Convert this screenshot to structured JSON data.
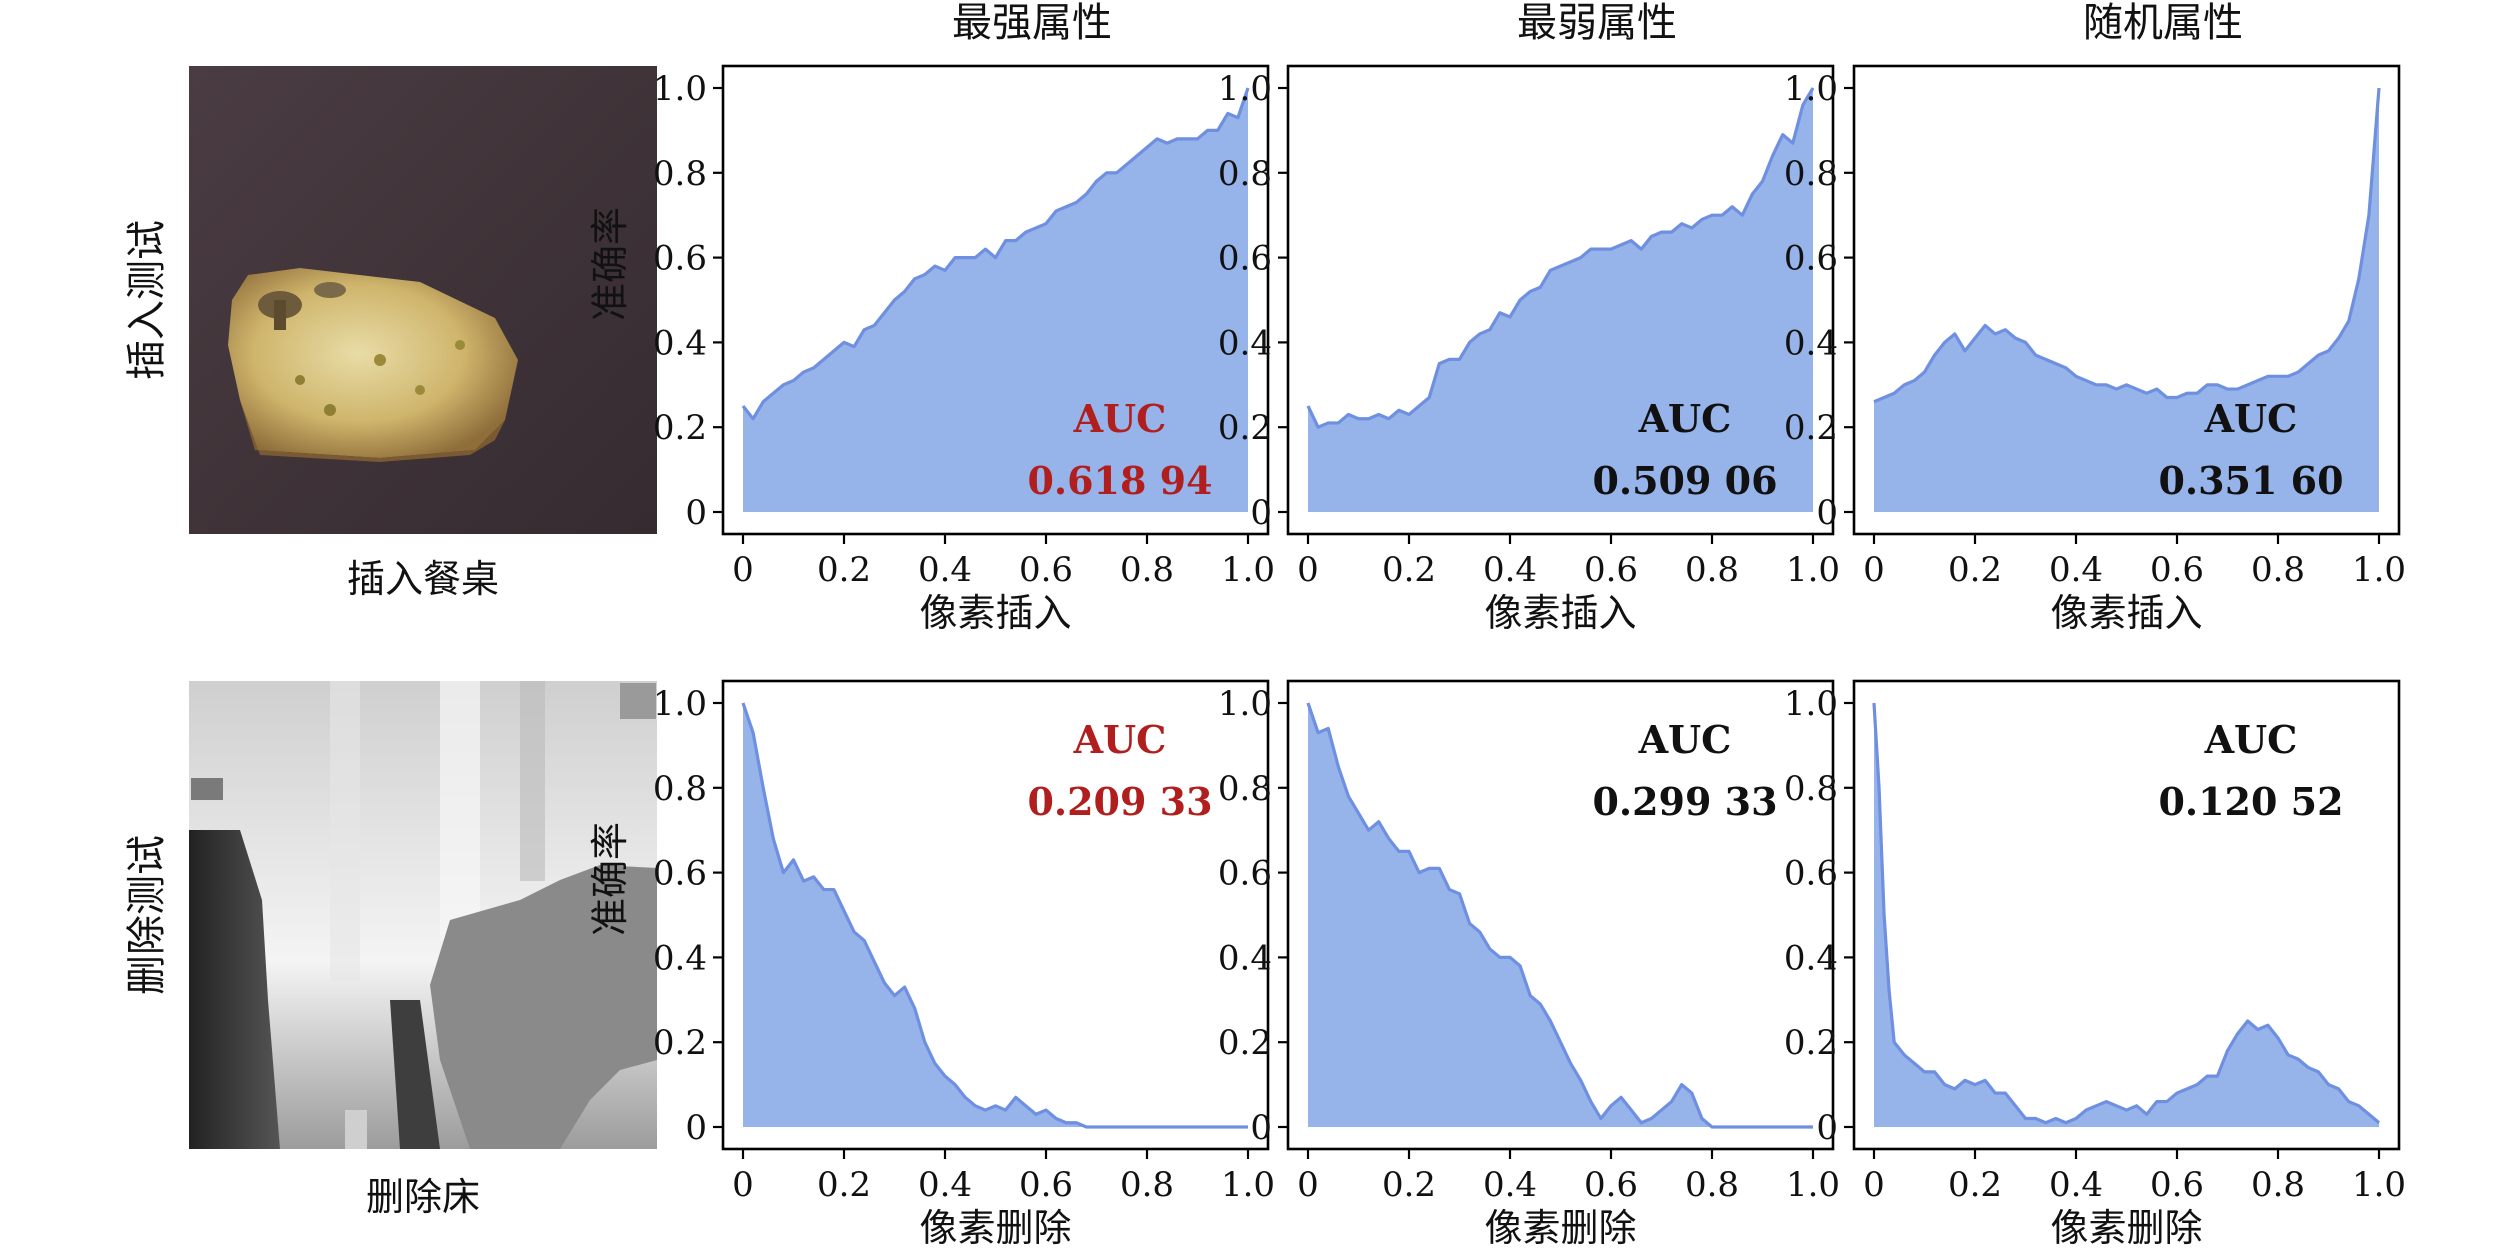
{
  "column_titles": [
    "最强属性",
    "最弱属性",
    "随机属性"
  ],
  "row_titles": [
    "插入测试",
    "删除测试"
  ],
  "image_captions": [
    "插入餐桌",
    "删除床"
  ],
  "images": [
    {
      "name": "dining-table-image",
      "description_colors": {
        "background": "#3d3035",
        "object": "#c9b06a"
      }
    },
    {
      "name": "bed-depth-image",
      "description_colors": {
        "background": "#d8d8d8",
        "object": "#8a8a8a"
      }
    }
  ],
  "colors": {
    "fill": "#96b3ea",
    "line": "#6f8fe0",
    "highlight": "#b01e1e",
    "text": "#111111"
  },
  "chart_data": [
    {
      "type": "area",
      "row": 0,
      "col": 0,
      "xlabel": "像素插入",
      "ylabel": "准确率",
      "xlim": [
        0,
        1
      ],
      "ylim": [
        0,
        1
      ],
      "xticks": [
        "0",
        "0.2",
        "0.4",
        "0.6",
        "0.8",
        "1.0"
      ],
      "yticks": [
        "0",
        "0.2",
        "0.4",
        "0.6",
        "0.8",
        "1.0"
      ],
      "auc_label": "AUC",
      "auc_value": "0.618 94",
      "highlight": true,
      "x": [
        0,
        0.02,
        0.04,
        0.06,
        0.08,
        0.1,
        0.12,
        0.14,
        0.16,
        0.18,
        0.2,
        0.22,
        0.24,
        0.26,
        0.28,
        0.3,
        0.32,
        0.34,
        0.36,
        0.38,
        0.4,
        0.42,
        0.44,
        0.46,
        0.48,
        0.5,
        0.52,
        0.54,
        0.56,
        0.58,
        0.6,
        0.62,
        0.64,
        0.66,
        0.68,
        0.7,
        0.72,
        0.74,
        0.76,
        0.78,
        0.8,
        0.82,
        0.84,
        0.86,
        0.88,
        0.9,
        0.92,
        0.94,
        0.96,
        0.98,
        1.0
      ],
      "y": [
        0.25,
        0.22,
        0.26,
        0.28,
        0.3,
        0.31,
        0.33,
        0.34,
        0.36,
        0.38,
        0.4,
        0.39,
        0.43,
        0.44,
        0.47,
        0.5,
        0.52,
        0.55,
        0.56,
        0.58,
        0.57,
        0.6,
        0.6,
        0.6,
        0.62,
        0.6,
        0.64,
        0.64,
        0.66,
        0.67,
        0.68,
        0.71,
        0.72,
        0.73,
        0.75,
        0.78,
        0.8,
        0.8,
        0.82,
        0.84,
        0.86,
        0.88,
        0.87,
        0.88,
        0.88,
        0.88,
        0.9,
        0.9,
        0.94,
        0.93,
        1.0
      ]
    },
    {
      "type": "area",
      "row": 0,
      "col": 1,
      "xlabel": "像素插入",
      "ylabel": "",
      "xlim": [
        0,
        1
      ],
      "ylim": [
        0,
        1
      ],
      "xticks": [
        "0",
        "0.2",
        "0.4",
        "0.6",
        "0.8",
        "1.0"
      ],
      "yticks": [
        "0",
        "0.2",
        "0.4",
        "0.6",
        "0.8",
        "1.0"
      ],
      "auc_label": "AUC",
      "auc_value": "0.509 06",
      "highlight": false,
      "x": [
        0,
        0.02,
        0.04,
        0.06,
        0.08,
        0.1,
        0.12,
        0.14,
        0.16,
        0.18,
        0.2,
        0.22,
        0.24,
        0.26,
        0.28,
        0.3,
        0.32,
        0.34,
        0.36,
        0.38,
        0.4,
        0.42,
        0.44,
        0.46,
        0.48,
        0.5,
        0.52,
        0.54,
        0.56,
        0.58,
        0.6,
        0.62,
        0.64,
        0.66,
        0.68,
        0.7,
        0.72,
        0.74,
        0.76,
        0.78,
        0.8,
        0.82,
        0.84,
        0.86,
        0.88,
        0.9,
        0.92,
        0.94,
        0.96,
        0.98,
        1.0
      ],
      "y": [
        0.25,
        0.2,
        0.21,
        0.21,
        0.23,
        0.22,
        0.22,
        0.23,
        0.22,
        0.24,
        0.23,
        0.25,
        0.27,
        0.35,
        0.36,
        0.36,
        0.4,
        0.42,
        0.43,
        0.47,
        0.46,
        0.5,
        0.52,
        0.53,
        0.57,
        0.58,
        0.59,
        0.6,
        0.62,
        0.62,
        0.62,
        0.63,
        0.64,
        0.62,
        0.65,
        0.66,
        0.66,
        0.68,
        0.67,
        0.69,
        0.7,
        0.7,
        0.72,
        0.7,
        0.75,
        0.78,
        0.84,
        0.89,
        0.87,
        0.96,
        1.0
      ]
    },
    {
      "type": "area",
      "row": 0,
      "col": 2,
      "xlabel": "像素插入",
      "ylabel": "",
      "xlim": [
        0,
        1
      ],
      "ylim": [
        0,
        1
      ],
      "xticks": [
        "0",
        "0.2",
        "0.4",
        "0.6",
        "0.8",
        "1.0"
      ],
      "yticks": [
        "0",
        "0.2",
        "0.4",
        "0.6",
        "0.8",
        "1.0"
      ],
      "auc_label": "AUC",
      "auc_value": "0.351 60",
      "highlight": false,
      "x": [
        0,
        0.02,
        0.04,
        0.06,
        0.08,
        0.1,
        0.12,
        0.14,
        0.16,
        0.18,
        0.2,
        0.22,
        0.24,
        0.26,
        0.28,
        0.3,
        0.32,
        0.34,
        0.36,
        0.38,
        0.4,
        0.42,
        0.44,
        0.46,
        0.48,
        0.5,
        0.52,
        0.54,
        0.56,
        0.58,
        0.6,
        0.62,
        0.64,
        0.66,
        0.68,
        0.7,
        0.72,
        0.74,
        0.76,
        0.78,
        0.8,
        0.82,
        0.84,
        0.86,
        0.88,
        0.9,
        0.92,
        0.94,
        0.96,
        0.98,
        1.0
      ],
      "y": [
        0.26,
        0.27,
        0.28,
        0.3,
        0.31,
        0.33,
        0.37,
        0.4,
        0.42,
        0.38,
        0.41,
        0.44,
        0.42,
        0.43,
        0.41,
        0.4,
        0.37,
        0.36,
        0.35,
        0.34,
        0.32,
        0.31,
        0.3,
        0.3,
        0.29,
        0.3,
        0.29,
        0.28,
        0.29,
        0.27,
        0.27,
        0.28,
        0.28,
        0.3,
        0.3,
        0.29,
        0.29,
        0.3,
        0.31,
        0.32,
        0.32,
        0.32,
        0.33,
        0.35,
        0.37,
        0.38,
        0.41,
        0.45,
        0.55,
        0.7,
        1.0
      ]
    },
    {
      "type": "area",
      "row": 1,
      "col": 0,
      "xlabel": "像素删除",
      "ylabel": "准确率",
      "xlim": [
        0,
        1
      ],
      "ylim": [
        0,
        1
      ],
      "xticks": [
        "0",
        "0.2",
        "0.4",
        "0.6",
        "0.8",
        "1.0"
      ],
      "yticks": [
        "0",
        "0.2",
        "0.4",
        "0.6",
        "0.8",
        "1.0"
      ],
      "auc_label": "AUC",
      "auc_value": "0.209 33",
      "highlight": true,
      "x": [
        0,
        0.02,
        0.04,
        0.06,
        0.08,
        0.1,
        0.12,
        0.14,
        0.16,
        0.18,
        0.2,
        0.22,
        0.24,
        0.26,
        0.28,
        0.3,
        0.32,
        0.34,
        0.36,
        0.38,
        0.4,
        0.42,
        0.44,
        0.46,
        0.48,
        0.5,
        0.52,
        0.54,
        0.56,
        0.58,
        0.6,
        0.62,
        0.64,
        0.66,
        0.68,
        0.7,
        0.75,
        0.8,
        0.85,
        0.9,
        0.95,
        1.0
      ],
      "y": [
        1.0,
        0.93,
        0.8,
        0.68,
        0.6,
        0.63,
        0.58,
        0.59,
        0.56,
        0.56,
        0.51,
        0.46,
        0.44,
        0.39,
        0.34,
        0.31,
        0.33,
        0.28,
        0.2,
        0.15,
        0.12,
        0.1,
        0.07,
        0.05,
        0.04,
        0.05,
        0.04,
        0.07,
        0.05,
        0.03,
        0.04,
        0.02,
        0.01,
        0.01,
        0.0,
        0.0,
        0.0,
        0.0,
        0.0,
        0.0,
        0.0,
        0.0
      ]
    },
    {
      "type": "area",
      "row": 1,
      "col": 1,
      "xlabel": "像素删除",
      "ylabel": "",
      "xlim": [
        0,
        1
      ],
      "ylim": [
        0,
        1
      ],
      "xticks": [
        "0",
        "0.2",
        "0.4",
        "0.6",
        "0.8",
        "1.0"
      ],
      "yticks": [
        "0",
        "0.2",
        "0.4",
        "0.6",
        "0.8",
        "1.0"
      ],
      "auc_label": "AUC",
      "auc_value": "0.299 33",
      "highlight": false,
      "x": [
        0,
        0.02,
        0.04,
        0.06,
        0.08,
        0.1,
        0.12,
        0.14,
        0.16,
        0.18,
        0.2,
        0.22,
        0.24,
        0.26,
        0.28,
        0.3,
        0.32,
        0.34,
        0.36,
        0.38,
        0.4,
        0.42,
        0.44,
        0.46,
        0.48,
        0.5,
        0.52,
        0.54,
        0.56,
        0.58,
        0.6,
        0.62,
        0.64,
        0.66,
        0.68,
        0.7,
        0.72,
        0.74,
        0.76,
        0.78,
        0.8,
        0.85,
        0.9,
        0.95,
        1.0
      ],
      "y": [
        1.0,
        0.93,
        0.94,
        0.85,
        0.78,
        0.74,
        0.7,
        0.72,
        0.68,
        0.65,
        0.65,
        0.6,
        0.61,
        0.61,
        0.56,
        0.55,
        0.48,
        0.46,
        0.42,
        0.4,
        0.4,
        0.38,
        0.31,
        0.29,
        0.25,
        0.2,
        0.15,
        0.11,
        0.06,
        0.02,
        0.05,
        0.07,
        0.04,
        0.01,
        0.02,
        0.04,
        0.06,
        0.1,
        0.08,
        0.02,
        0.0,
        0.0,
        0.0,
        0.0,
        0.0
      ]
    },
    {
      "type": "area",
      "row": 1,
      "col": 2,
      "xlabel": "像素删除",
      "ylabel": "",
      "xlim": [
        0,
        1
      ],
      "ylim": [
        0,
        1
      ],
      "xticks": [
        "0",
        "0.2",
        "0.4",
        "0.6",
        "0.8",
        "1.0"
      ],
      "yticks": [
        "0",
        "0.2",
        "0.4",
        "0.6",
        "0.8",
        "1.0"
      ],
      "auc_label": "AUC",
      "auc_value": "0.120 52",
      "highlight": false,
      "x": [
        0,
        0.01,
        0.02,
        0.03,
        0.04,
        0.06,
        0.08,
        0.1,
        0.12,
        0.14,
        0.16,
        0.18,
        0.2,
        0.22,
        0.24,
        0.26,
        0.28,
        0.3,
        0.32,
        0.34,
        0.36,
        0.38,
        0.4,
        0.42,
        0.44,
        0.46,
        0.48,
        0.5,
        0.52,
        0.54,
        0.56,
        0.58,
        0.6,
        0.62,
        0.64,
        0.66,
        0.68,
        0.7,
        0.72,
        0.74,
        0.76,
        0.78,
        0.8,
        0.82,
        0.84,
        0.86,
        0.88,
        0.9,
        0.92,
        0.94,
        0.96,
        0.98,
        1.0
      ],
      "y": [
        1.0,
        0.8,
        0.5,
        0.32,
        0.2,
        0.17,
        0.15,
        0.13,
        0.13,
        0.1,
        0.09,
        0.11,
        0.1,
        0.11,
        0.08,
        0.08,
        0.05,
        0.02,
        0.02,
        0.01,
        0.02,
        0.01,
        0.02,
        0.04,
        0.05,
        0.06,
        0.05,
        0.04,
        0.05,
        0.03,
        0.06,
        0.06,
        0.08,
        0.09,
        0.1,
        0.12,
        0.12,
        0.18,
        0.22,
        0.25,
        0.23,
        0.24,
        0.21,
        0.17,
        0.16,
        0.14,
        0.13,
        0.1,
        0.09,
        0.06,
        0.05,
        0.03,
        0.01
      ]
    }
  ]
}
